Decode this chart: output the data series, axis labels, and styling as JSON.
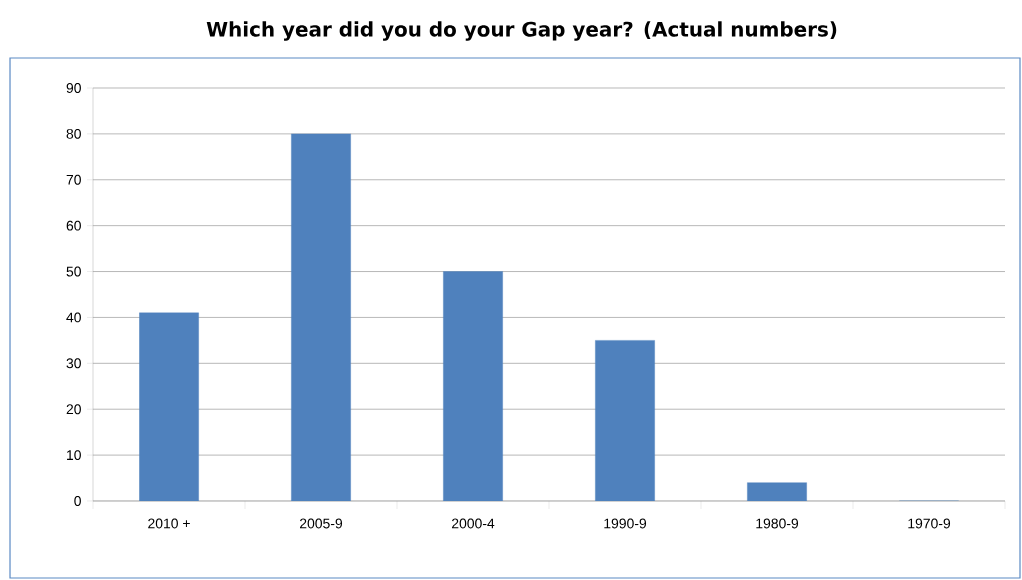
{
  "chart_data": {
    "type": "bar",
    "title": "Which year did you do your Gap year? (Actual numbers)",
    "categories": [
      "2010 +",
      "2005-9",
      "2000-4",
      "1990-9",
      "1980-9",
      "1970-9"
    ],
    "values": [
      41,
      80,
      50,
      35,
      4,
      0
    ],
    "color": "#4f81bd",
    "ylim": [
      0,
      90
    ],
    "yticks": [
      0,
      10,
      20,
      30,
      40,
      50,
      60,
      70,
      80,
      90
    ],
    "grid": "y"
  }
}
